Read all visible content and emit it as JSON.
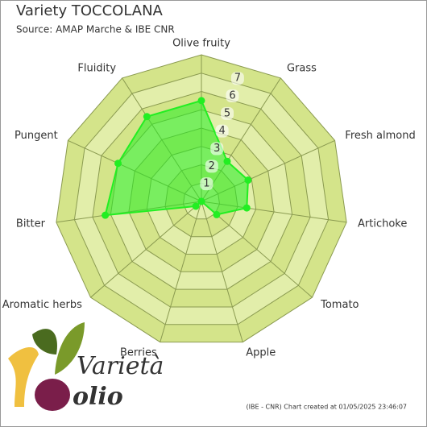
{
  "chart_data": {
    "type": "radar",
    "title": "Variety TOCCOLANA",
    "subtitle": "Source: AMAP Marche & IBE CNR",
    "footnote": "(IBE - CNR) Chart created at 01/05/2025 23:46:07",
    "logo": [
      "Varietà",
      "olio"
    ],
    "categories": [
      "Olive fruity",
      "Grass",
      "Fresh almond",
      "Artichoke",
      "Tomato",
      "Apple",
      "Berries",
      "Aromatic herbs",
      "Bitter",
      "Pungent",
      "Fluidity"
    ],
    "values": [
      5.5,
      2.6,
      2.8,
      2.5,
      1.1,
      0,
      0,
      0.4,
      5.3,
      5.0,
      5.5
    ],
    "color": "#22ee22",
    "ylim": [
      0,
      8
    ],
    "yticks": [
      1,
      2,
      3,
      4,
      5,
      6,
      7
    ],
    "grid": true
  }
}
